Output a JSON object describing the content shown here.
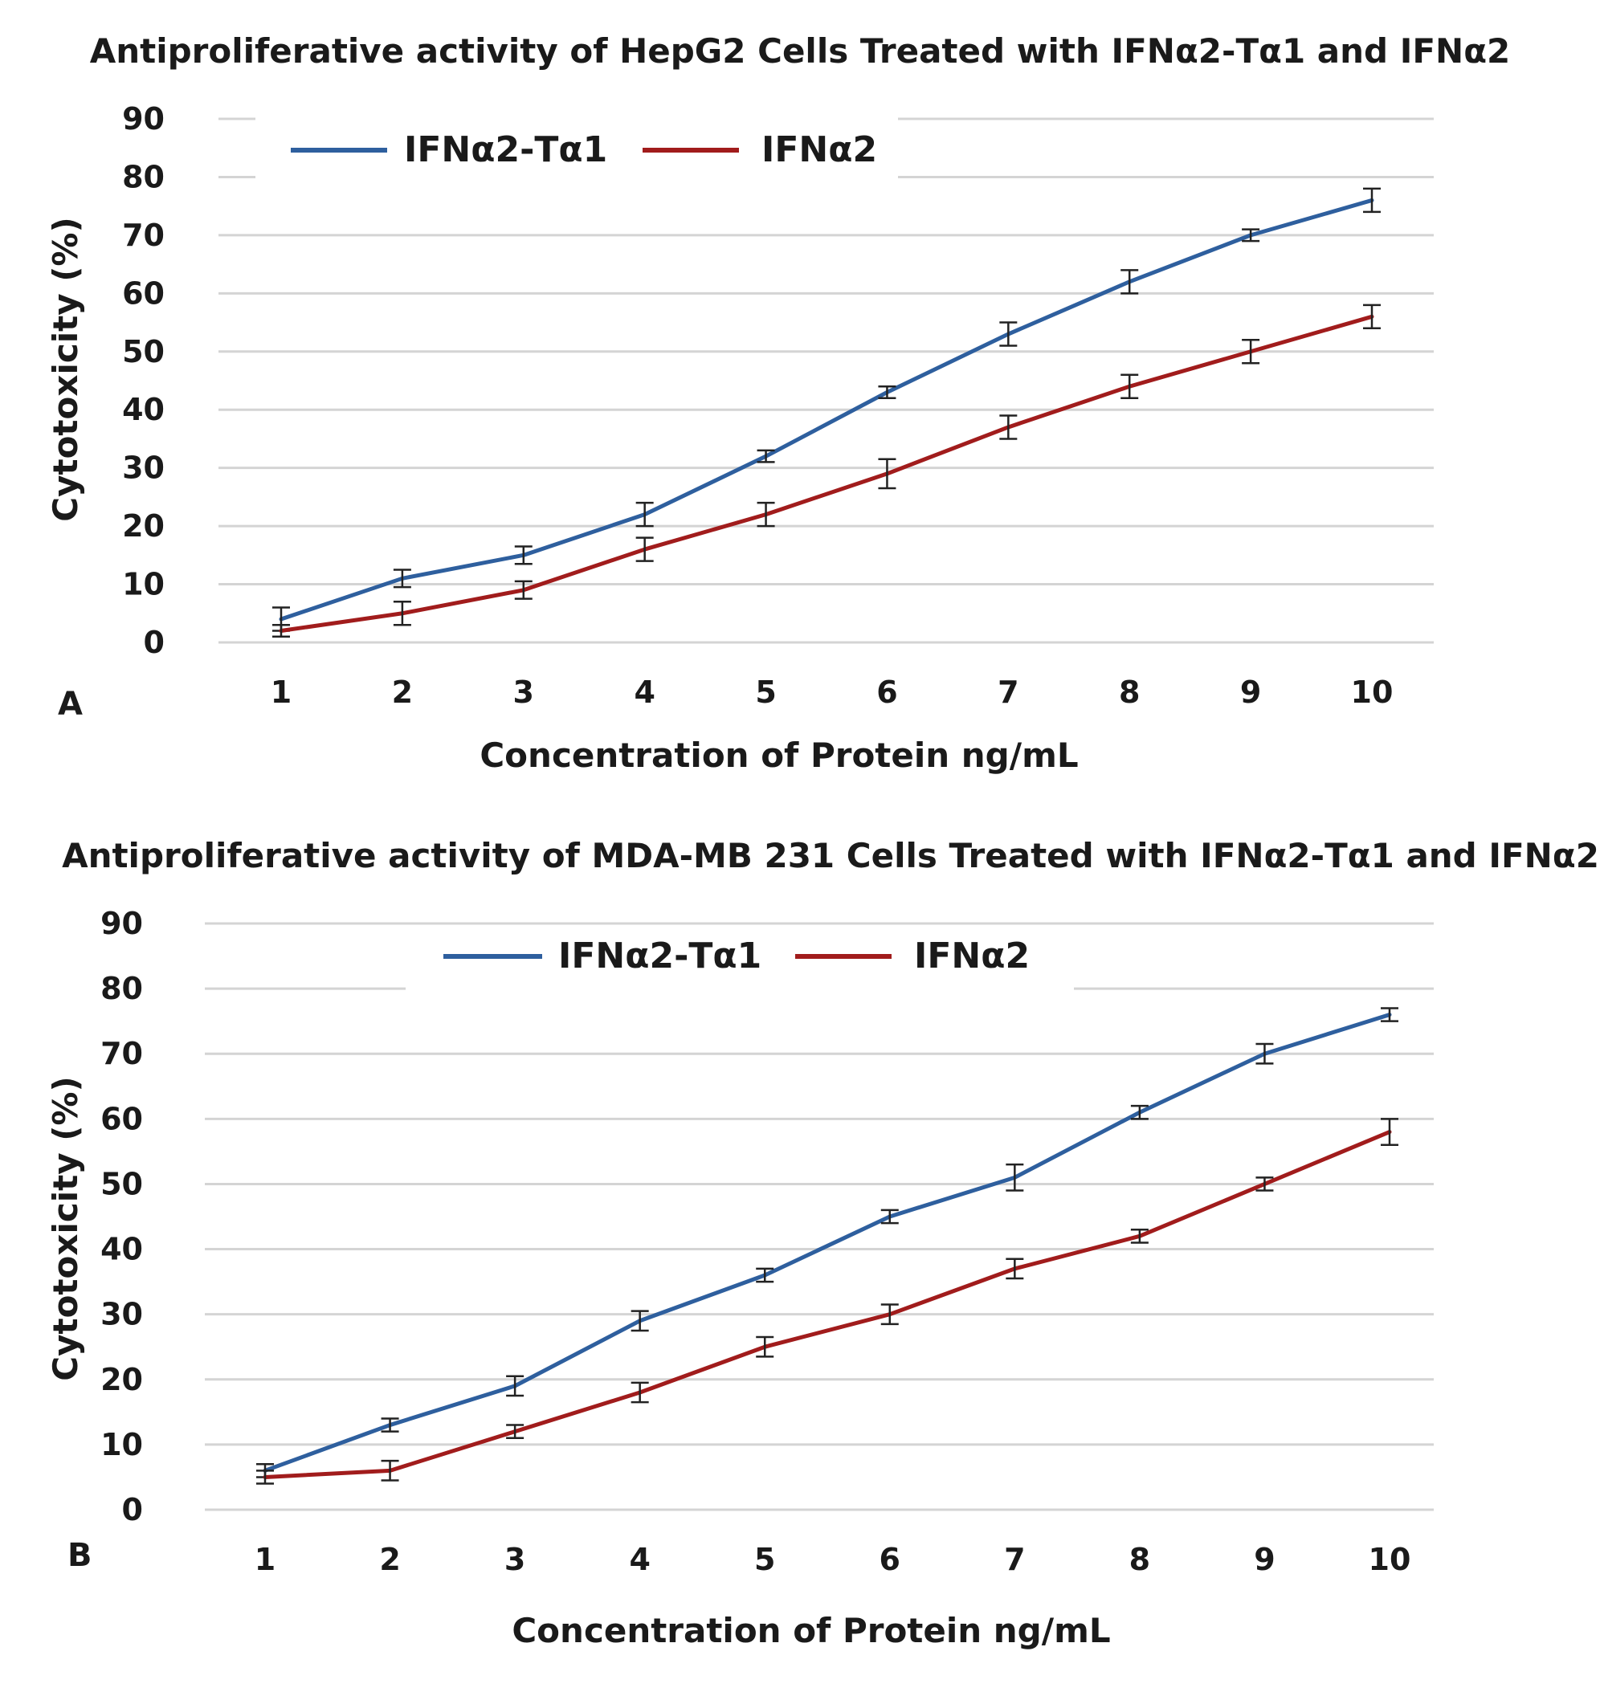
{
  "chart_data": [
    {
      "type": "line",
      "panel_label": "A",
      "title": "Antiproliferative activity of HepG2 Cells Treated with IFNα2-Tα1 and IFNα2",
      "xlabel": "Concentration of Protein ng/mL",
      "ylabel": "Cytotoxicity (%)",
      "categories": [
        "1",
        "2",
        "3",
        "4",
        "5",
        "6",
        "7",
        "8",
        "9",
        "10"
      ],
      "y_ticks": [
        "0",
        "10",
        "20",
        "30",
        "40",
        "50",
        "60",
        "70",
        "80",
        "90"
      ],
      "ylim": [
        0,
        90
      ],
      "grid": true,
      "legend_position": "top-left",
      "series": [
        {
          "name": "IFNα2-Tα1",
          "color": "#2e5f9e",
          "values": [
            4,
            11,
            15,
            22,
            32,
            43,
            53,
            62,
            70,
            76
          ],
          "errors": [
            2,
            1.5,
            1.5,
            2,
            1,
            1,
            2,
            2,
            1,
            2
          ]
        },
        {
          "name": "IFNα2",
          "color": "#a11c1c",
          "values": [
            2,
            5,
            9,
            16,
            22,
            29,
            37,
            44,
            50,
            56
          ],
          "errors": [
            1,
            2,
            1.5,
            2,
            2,
            2.5,
            2,
            2,
            2,
            2
          ]
        }
      ]
    },
    {
      "type": "line",
      "panel_label": "B",
      "title": "Antiproliferative activity of MDA-MB 231 Cells Treated with IFNα2-Tα1 and IFNα2",
      "xlabel": "Concentration of Protein ng/mL",
      "ylabel": "Cytotoxicity (%)",
      "categories": [
        "1",
        "2",
        "3",
        "4",
        "5",
        "6",
        "7",
        "8",
        "9",
        "10"
      ],
      "y_ticks": [
        "0",
        "10",
        "20",
        "30",
        "40",
        "50",
        "60",
        "70",
        "80",
        "90"
      ],
      "ylim": [
        0,
        90
      ],
      "grid": true,
      "legend_position": "top-center",
      "series": [
        {
          "name": "IFNα2-Tα1",
          "color": "#2e5f9e",
          "values": [
            6,
            13,
            19,
            29,
            36,
            45,
            51,
            61,
            70,
            76
          ],
          "errors": [
            1,
            1,
            1.5,
            1.5,
            1,
            1,
            2,
            1,
            1.5,
            1
          ]
        },
        {
          "name": "IFNα2",
          "color": "#a11c1c",
          "values": [
            5,
            6,
            12,
            18,
            25,
            30,
            37,
            42,
            50,
            58
          ],
          "errors": [
            1,
            1.5,
            1,
            1.5,
            1.5,
            1.5,
            1.5,
            1,
            1,
            2
          ]
        }
      ]
    }
  ]
}
